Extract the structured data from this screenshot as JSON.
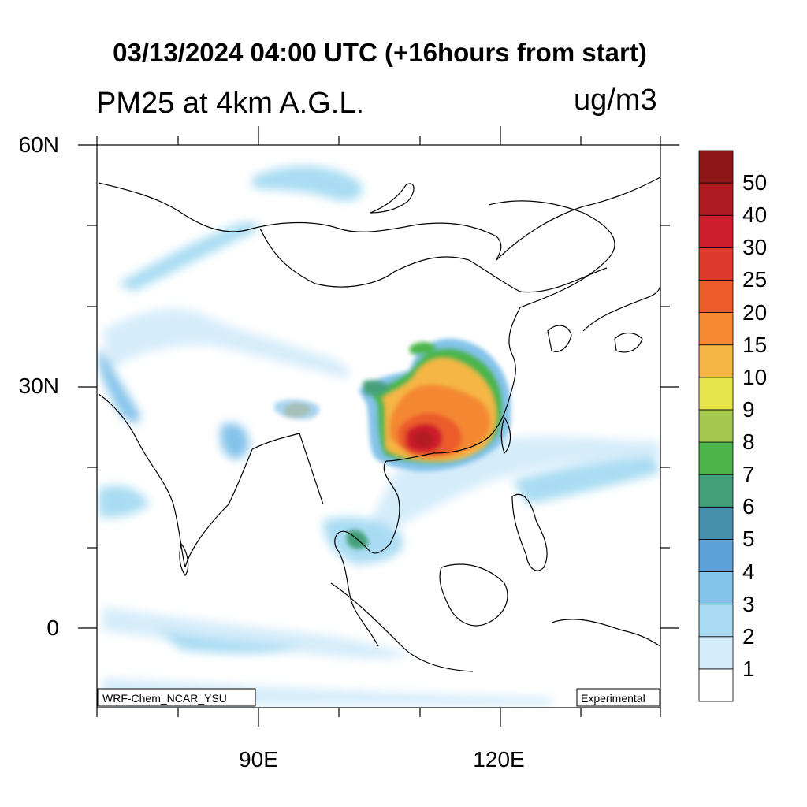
{
  "title": "03/13/2024 04:00 UTC (+16hours from start)",
  "subtitle": "PM25 at 4km A.G.L.",
  "units": "ug/m3",
  "lat_labels": [
    {
      "text": "60N",
      "lat": 60
    },
    {
      "text": "30N",
      "lat": 30
    },
    {
      "text": "0",
      "lat": 0
    }
  ],
  "lon_labels": [
    {
      "text": "90E",
      "lon": 90
    },
    {
      "text": "120E",
      "lon": 120
    }
  ],
  "model_label": "WRF-Chem_NCAR_YSU",
  "status_label": "Experimental",
  "colorbar": {
    "labels": [
      "1",
      "2",
      "3",
      "4",
      "5",
      "6",
      "7",
      "8",
      "9",
      "10",
      "15",
      "20",
      "25",
      "30",
      "40",
      "50"
    ],
    "colors": [
      "#ffffff",
      "#d5ecfa",
      "#a9dcf3",
      "#84c3ea",
      "#5da3d9",
      "#4590ad",
      "#44a07a",
      "#4bb54b",
      "#a5c84e",
      "#e8e44d",
      "#f5b645",
      "#f48833",
      "#eb5b2b",
      "#dc3a2d",
      "#ce1e2c",
      "#b01a23",
      "#8e1619"
    ]
  }
}
